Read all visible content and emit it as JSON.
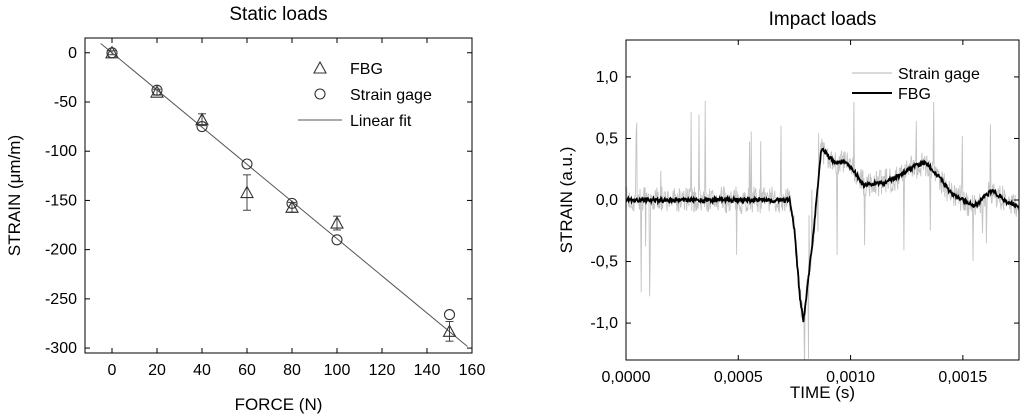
{
  "chart_data": [
    {
      "type": "scatter",
      "title": "Static loads",
      "xlabel": "FORCE (N)",
      "ylabel": "STRAIN (μm/m)",
      "xlim": [
        -12,
        160
      ],
      "ylim": [
        -305,
        15
      ],
      "xticks": [
        "0",
        "20",
        "40",
        "60",
        "80",
        "100",
        "120",
        "140",
        "160"
      ],
      "yticks": [
        "0",
        "-50",
        "-100",
        "-150",
        "-200",
        "-250",
        "-300"
      ],
      "grid": false,
      "legend": "top-right",
      "series": [
        {
          "name": "FBG",
          "marker": "triangle",
          "x": [
            0,
            20,
            40,
            60,
            80,
            100,
            150
          ],
          "y": [
            0,
            -40,
            -68,
            -142,
            -157,
            -173,
            -283
          ],
          "err": [
            2,
            3,
            6,
            18,
            5,
            7,
            10
          ]
        },
        {
          "name": "Strain gage",
          "marker": "circle",
          "x": [
            0,
            20,
            40,
            60,
            80,
            100,
            150
          ],
          "y": [
            0,
            -38,
            -75,
            -113,
            -153,
            -190,
            -266
          ]
        },
        {
          "name": "Linear fit",
          "marker": "line",
          "x": [
            -5,
            158
          ],
          "y": [
            9.4,
            -298.4
          ]
        }
      ]
    },
    {
      "type": "line",
      "title": "Impact loads",
      "xlabel": "TIME (s)",
      "ylabel": "STRAIN (a.u.)",
      "xlim": [
        0,
        0.00175
      ],
      "ylim": [
        -1.3,
        1.3
      ],
      "xticks": [
        "0,0000",
        "0,0005",
        "0,0010",
        "0,0015"
      ],
      "yticks": [
        "1,0",
        "0,5",
        "0,0",
        "-0,5",
        "-1,0"
      ],
      "grid": false,
      "legend": "top-right",
      "series": [
        {
          "name": "Strain gage",
          "color": "#c4c4c4",
          "x": [
            0,
            0.00074,
            0.00078,
            0.00083,
            0.000875,
            0.0011,
            0.0013,
            0.00175
          ],
          "y": [
            0,
            0,
            -0.95,
            0.25,
            0.35,
            0.15,
            0.25,
            0
          ]
        },
        {
          "name": "FBG",
          "color": "#000000",
          "x": [
            0,
            0.00073,
            0.00075,
            0.000775,
            0.00079,
            0.00083,
            0.00087,
            0.00093,
            0.00097,
            0.001,
            0.00106,
            0.00115,
            0.00122,
            0.00128,
            0.00133,
            0.00138,
            0.00145,
            0.00155,
            0.00163,
            0.0017,
            0.00175
          ],
          "y": [
            0.0,
            0.0,
            -0.25,
            -0.8,
            -0.99,
            -0.35,
            0.42,
            0.3,
            0.31,
            0.27,
            0.12,
            0.14,
            0.2,
            0.27,
            0.31,
            0.22,
            0.05,
            -0.05,
            0.08,
            -0.02,
            -0.05
          ]
        }
      ]
    }
  ]
}
